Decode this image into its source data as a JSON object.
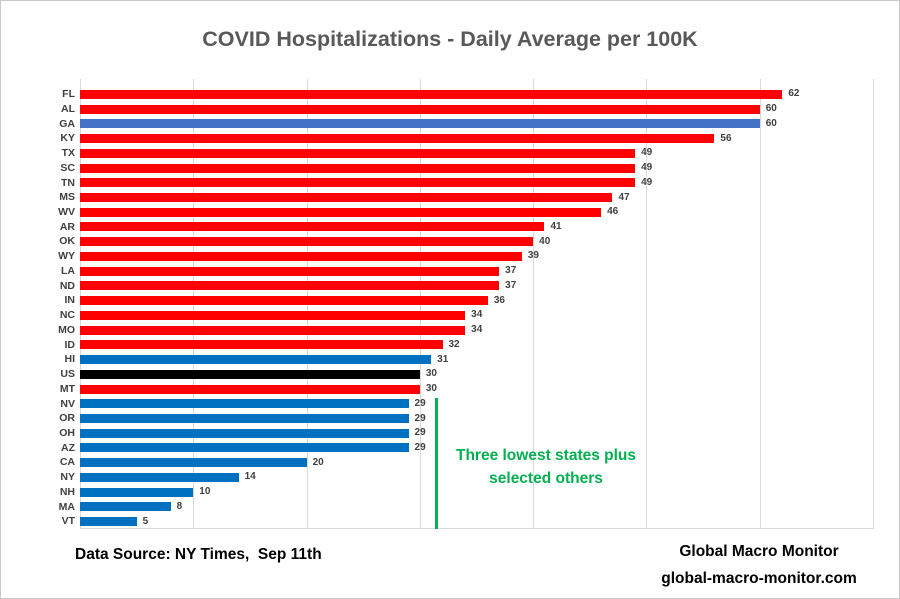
{
  "title": "COVID Hospitalizations - Daily Average per 100K",
  "chart_data": {
    "type": "bar",
    "orientation": "horizontal",
    "title": "COVID Hospitalizations - Daily Average per 100K",
    "xlabel": "",
    "ylabel": "",
    "xlim": [
      0,
      70
    ],
    "gridlines": [
      10,
      20,
      30,
      40,
      50,
      60,
      70
    ],
    "grid": true,
    "legend": false,
    "bars": [
      {
        "state": "FL",
        "value": 62,
        "color": "#FF0000"
      },
      {
        "state": "AL",
        "value": 60,
        "color": "#FF0000"
      },
      {
        "state": "GA",
        "value": 60,
        "color": "#4472C4"
      },
      {
        "state": "KY",
        "value": 56,
        "color": "#FF0000"
      },
      {
        "state": "TX",
        "value": 49,
        "color": "#FF0000"
      },
      {
        "state": "SC",
        "value": 49,
        "color": "#FF0000"
      },
      {
        "state": "TN",
        "value": 49,
        "color": "#FF0000"
      },
      {
        "state": "MS",
        "value": 47,
        "color": "#FF0000"
      },
      {
        "state": "WV",
        "value": 46,
        "color": "#FF0000"
      },
      {
        "state": "AR",
        "value": 41,
        "color": "#FF0000"
      },
      {
        "state": "OK",
        "value": 40,
        "color": "#FF0000"
      },
      {
        "state": "WY",
        "value": 39,
        "color": "#FF0000"
      },
      {
        "state": "LA",
        "value": 37,
        "color": "#FF0000"
      },
      {
        "state": "ND",
        "value": 37,
        "color": "#FF0000"
      },
      {
        "state": "IN",
        "value": 36,
        "color": "#FF0000"
      },
      {
        "state": "NC",
        "value": 34,
        "color": "#FF0000"
      },
      {
        "state": "MO",
        "value": 34,
        "color": "#FF0000"
      },
      {
        "state": "ID",
        "value": 32,
        "color": "#FF0000"
      },
      {
        "state": "HI",
        "value": 31,
        "color": "#0070C0"
      },
      {
        "state": "US",
        "value": 30,
        "color": "#000000"
      },
      {
        "state": "MT",
        "value": 30,
        "color": "#FF0000"
      },
      {
        "state": "NV",
        "value": 29,
        "color": "#0070C0"
      },
      {
        "state": "OR",
        "value": 29,
        "color": "#0070C0"
      },
      {
        "state": "OH",
        "value": 29,
        "color": "#0070C0"
      },
      {
        "state": "AZ",
        "value": 29,
        "color": "#0070C0"
      },
      {
        "state": "CA",
        "value": 20,
        "color": "#0070C0"
      },
      {
        "state": "NY",
        "value": 14,
        "color": "#0070C0"
      },
      {
        "state": "NH",
        "value": 10,
        "color": "#0070C0"
      },
      {
        "state": "MA",
        "value": 8,
        "color": "#0070C0"
      },
      {
        "state": "VT",
        "value": 5,
        "color": "#0070C0"
      }
    ],
    "annotation": {
      "line1": "Three lowest states plus",
      "line2": "selected others",
      "marker_line_x": 31.3,
      "color": "#00B050"
    }
  },
  "colors": {
    "red_bar": "#FF0000",
    "blue_bar": "#0070C0",
    "ga_highlight_blue": "#4472C4",
    "us_black": "#000000",
    "annotation_green": "#00B050",
    "grid_gray": "#D9D9D9",
    "title_gray": "#595959"
  },
  "footer": {
    "source": "Data Source: NY Times,  Sep 11th",
    "brand_name": "Global Macro Monitor",
    "brand_url": "global-macro-monitor.com"
  }
}
